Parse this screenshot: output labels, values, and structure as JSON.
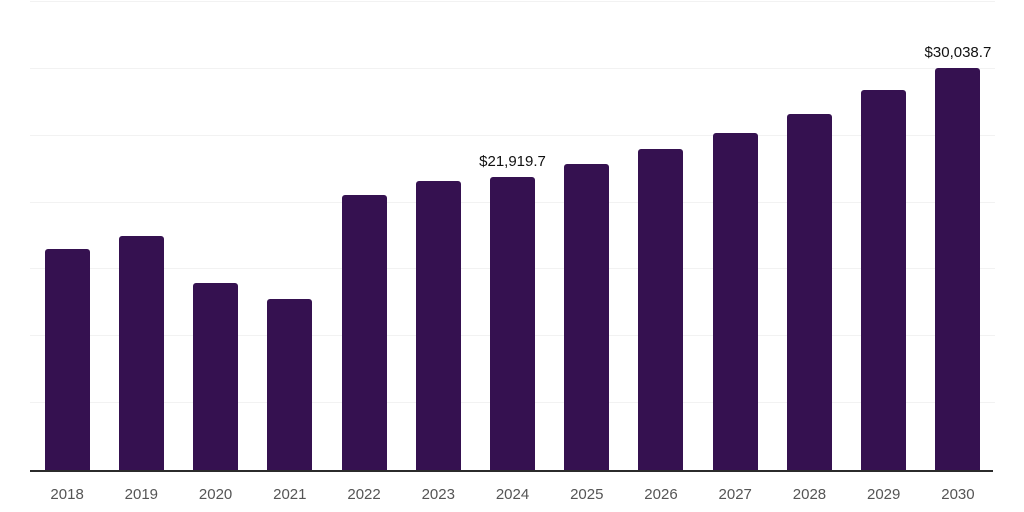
{
  "chart_data": {
    "type": "bar",
    "title": "",
    "xlabel": "",
    "ylabel": "",
    "categories": [
      "2018",
      "2019",
      "2020",
      "2021",
      "2022",
      "2023",
      "2024",
      "2025",
      "2026",
      "2027",
      "2028",
      "2029",
      "2030"
    ],
    "values": [
      16550,
      17500,
      13950,
      12800,
      20550,
      21650,
      21919.7,
      22900,
      24000,
      25200,
      26600,
      28400,
      30038.7
    ],
    "data_labels": [
      "",
      "",
      "",
      "",
      "",
      "",
      "$21,919.7",
      "",
      "",
      "",
      "",
      "",
      "$30,038.7"
    ],
    "ylim": [
      0,
      35000
    ],
    "gridline_step": 5000,
    "grid": "horizontal",
    "legend": "none",
    "y_axis_labels_visible": false,
    "colors": {
      "bar": "#351150",
      "gridline": "#f2f2f2",
      "axis_line": "#2b2b2b",
      "tick_label": "#555555",
      "data_label": "#111111",
      "background": "#ffffff"
    }
  }
}
